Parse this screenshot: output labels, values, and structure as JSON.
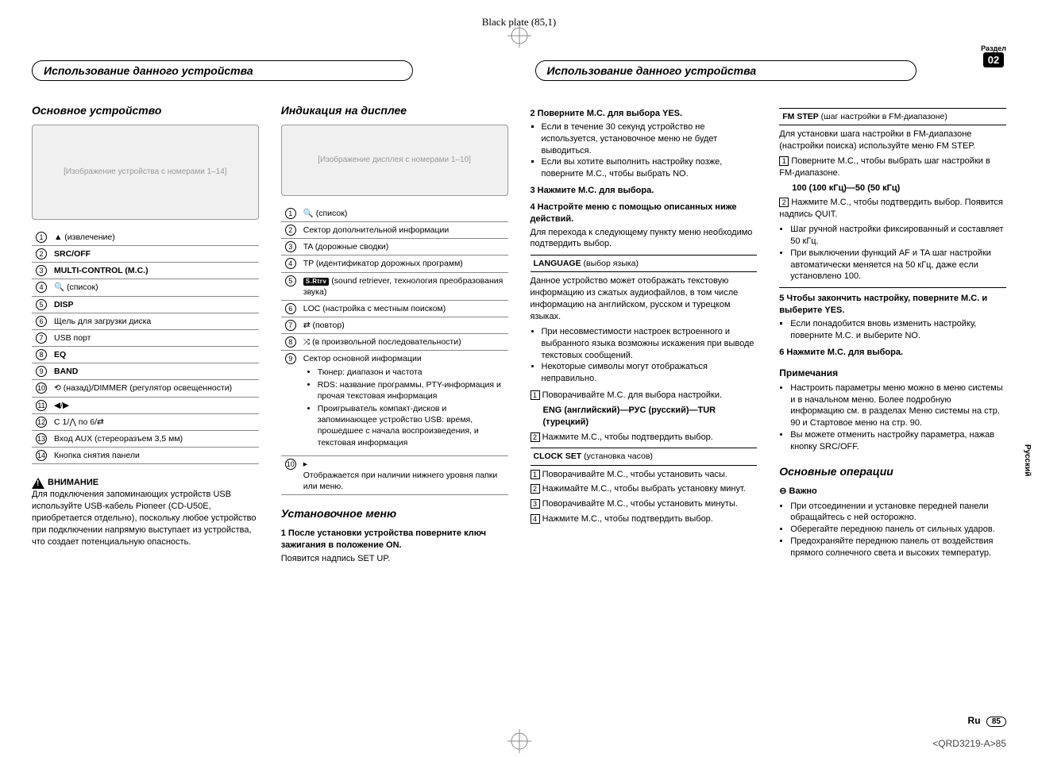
{
  "top_label": "Black plate (85,1)",
  "header_left": "Использование данного устройства",
  "header_right": "Использование данного устройства",
  "section_label": "Раздел",
  "section_num": "02",
  "col1": {
    "h_main": "Основное устройство",
    "device_placeholder": "[Изображение устройства с номерами 1–14]",
    "callouts": [
      {
        "n": "1",
        "t": "▲ (извлечение)"
      },
      {
        "n": "2",
        "t": "SRC/OFF"
      },
      {
        "n": "3",
        "t": "MULTI-CONTROL (M.C.)"
      },
      {
        "n": "4",
        "t": "🔍 (список)"
      },
      {
        "n": "5",
        "t": "DISP"
      },
      {
        "n": "6",
        "t": "Щель для загрузки диска"
      },
      {
        "n": "7",
        "t": "USB порт"
      },
      {
        "n": "8",
        "t": "EQ"
      },
      {
        "n": "9",
        "t": "BAND"
      },
      {
        "n": "10",
        "t": "⟲ (назад)/DIMMER (регулятор освещенности)"
      },
      {
        "n": "11",
        "t": "◀/▶"
      },
      {
        "n": "12",
        "t": "С 1/⋀ по 6/⇄"
      },
      {
        "n": "13",
        "t": "Вход AUX (стереоразъем 3,5 мм)"
      },
      {
        "n": "14",
        "t": "Кнопка снятия панели"
      }
    ],
    "warn_title": "ВНИМАНИЕ",
    "warn_body": "Для подключения запоминающих устройств USB используйте USB-кабель Pioneer (CD-U50E, приобретается отдельно), поскольку любое устройство при подключении напрямую выступает из устройства, что создает потенциальную опасность."
  },
  "col2": {
    "h_disp": "Индикация на дисплее",
    "display_placeholder": "[Изображение дисплея с номерами 1–10]",
    "callouts_a": [
      {
        "n": "1",
        "t": "🔍 (список)"
      },
      {
        "n": "2",
        "t": "Сектор дополнительной информации"
      },
      {
        "n": "3",
        "t": "TA (дорожные сводки)"
      },
      {
        "n": "4",
        "t": "TP (идентификатор дорожных программ)"
      },
      {
        "n": "5",
        "t_html": "<span class='srtrv'>S.Rtrv</span> (sound retriever, технология преобразования звука)"
      },
      {
        "n": "6",
        "t": "LOC (настройка с местным поиском)"
      },
      {
        "n": "7",
        "t": "⇄ (повтор)"
      },
      {
        "n": "8",
        "t": "⤨ (в произвольной последовательности)"
      }
    ],
    "info_sector_title": "Сектор основной информации",
    "info_sector_items": [
      "Тюнер: диапазон и частота",
      "RDS: название программы, PTY-информация и прочая текстовая информация",
      "Проигрыватель компакт-дисков и запоминающее устройство USB: время, прошедшее с начала воспроизведения, и текстовая информация"
    ],
    "callout10_icon": "▸",
    "callout10_text": "Отображается при наличии нижнего уровня папки или меню.",
    "h_setup": "Установочное меню",
    "step1": "1   После установки устройства поверните ключ зажигания в положение ON.",
    "step1_sub": "Появится надпись SET UP."
  },
  "col3": {
    "step2": "2   Поверните M.C. для выбора YES.",
    "step2_b1": "Если в течение 30 секунд устройство не используется, установочное меню не будет выводиться.",
    "step2_b2": "Если вы хотите выполнить настройку позже, поверните M.C., чтобы выбрать NO.",
    "step3": "3   Нажмите M.C. для выбора.",
    "step4": "4   Настройте меню с помощью описанных ниже действий.",
    "step4_sub": "Для перехода к следующему пункту меню необходимо подтвердить выбор.",
    "lang_hdr": "LANGUAGE (выбор языка)",
    "lang_body": "Данное устройство может отображать текстовую информацию из сжатых аудиофайлов, в том числе информацию на английском, русском и турецком языках.",
    "lang_bul1": "При несовместимости настроек встроенного и выбранного языка возможны искажения при выводе текстовых сообщений.",
    "lang_bul2": "Некоторые символы могут отображаться неправильно.",
    "lang_s1": "Поворачивайте M.C. для выбора настройки.",
    "lang_s1b": "ENG (английский)—РУС (русский)—TUR (турецкий)",
    "lang_s2": "Нажмите M.C., чтобы подтвердить выбор.",
    "clock_hdr": "CLOCK SET (установка часов)",
    "clock_s1": "Поворачивайте M.C., чтобы установить часы.",
    "clock_s2": "Нажимайте M.C., чтобы выбрать установку минут.",
    "clock_s3": "Поворачивайте M.C., чтобы установить минуты.",
    "clock_s4": "Нажмите M.C., чтобы подтвердить выбор."
  },
  "col4": {
    "fm_hdr": "FM STEP (шаг настройки в FM-диапазоне)",
    "fm_body": "Для установки шага настройки в FM-диапазоне (настройки поиска) используйте меню FM STEP.",
    "fm_s1": "Поверните M.C., чтобы выбрать шаг настройки в FM-диапазоне.",
    "fm_s1b": "100 (100 кГц)—50 (50 кГц)",
    "fm_s2": "Нажмите M.C., чтобы подтвердить выбор. Появится надпись QUIT.",
    "fm_b1": "Шаг ручной настройки фиксированный и составляет 50 кГц.",
    "fm_b2": "При выключении функций AF и TA шаг настройки автоматически меняется на 50 кГц, даже если установлено 100.",
    "step5": "5   Чтобы закончить настройку, поверните M.C. и выберите YES.",
    "step5_b": "Если понадобится вновь изменить настройку, поверните M.C. и выберите NO.",
    "step6": "6   Нажмите M.C. для выбора.",
    "notes_hdr": "Примечания",
    "note1": "Настроить параметры меню можно в меню системы и в начальном меню. Более подробную информацию см. в разделах Меню системы на стр. 90 и Стартовое меню на стр. 90.",
    "note2": "Вы можете отменить настройку параметра, нажав кнопку SRC/OFF.",
    "h_basic": "Основные операции",
    "imp_hdr": "Важно",
    "imp1": "При отсоединении и установке передней панели обращайтесь с ней осторожно.",
    "imp2": "Оберегайте переднюю панель от сильных ударов.",
    "imp3": "Предохраняйте переднюю панель от воздействия прямого солнечного света и высоких температур."
  },
  "footer": {
    "lang": "Ru",
    "page": "85",
    "docid": "<QRD3219-A>85",
    "side_lang": "Русский"
  }
}
